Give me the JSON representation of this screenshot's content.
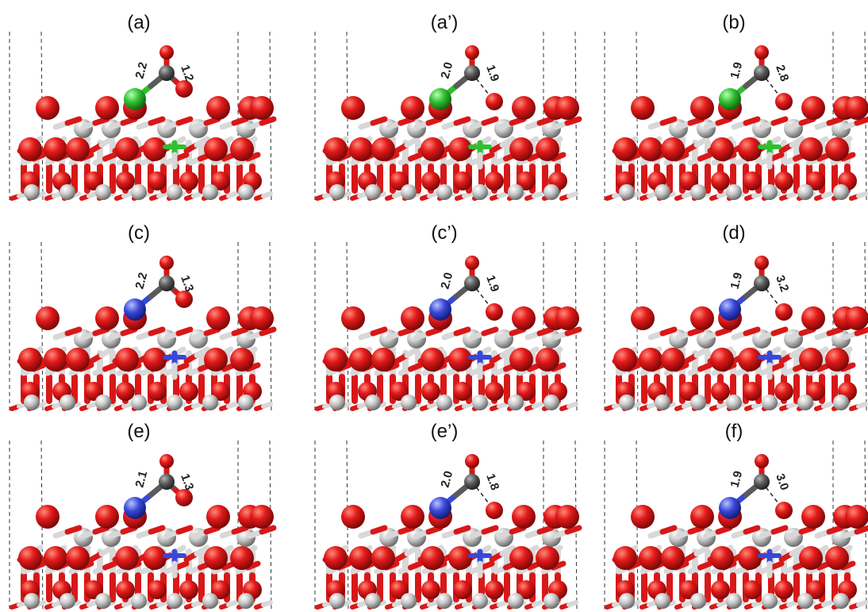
{
  "figure": {
    "panels": [
      {
        "label": "(a)",
        "dopant": "green",
        "d1": "2.2",
        "d2": "1.2",
        "bonded": true
      },
      {
        "label": "(a’)",
        "dopant": "green",
        "d1": "2.0",
        "d2": "1.9",
        "bonded": false
      },
      {
        "label": "(b)",
        "dopant": "green",
        "d1": "1.9",
        "d2": "2.8",
        "bonded": false
      },
      {
        "label": "(c)",
        "dopant": "blue",
        "d1": "2.2",
        "d2": "1.3",
        "bonded": true
      },
      {
        "label": "(c’)",
        "dopant": "blue",
        "d1": "2.0",
        "d2": "1.9",
        "bonded": false
      },
      {
        "label": "(d)",
        "dopant": "blue",
        "d1": "1.9",
        "d2": "3.2",
        "bonded": false
      },
      {
        "label": "(e)",
        "dopant": "blue",
        "d1": "2.1",
        "d2": "1.3",
        "bonded": true
      },
      {
        "label": "(e’)",
        "dopant": "blue",
        "d1": "2.0",
        "d2": "1.8",
        "bonded": false
      },
      {
        "label": "(f)",
        "dopant": "blue",
        "d1": "1.9",
        "d2": "3.0",
        "bonded": false
      }
    ],
    "colors": {
      "oxygen": "#e31a1a",
      "oxygen_dark": "#8e0a0a",
      "metal": "#c8c8c8",
      "metal_dark": "#7a7a7a",
      "carbon": "#5a5a5a",
      "green_dopant": "#2fbf2f",
      "blue_dopant": "#3848d8"
    }
  }
}
